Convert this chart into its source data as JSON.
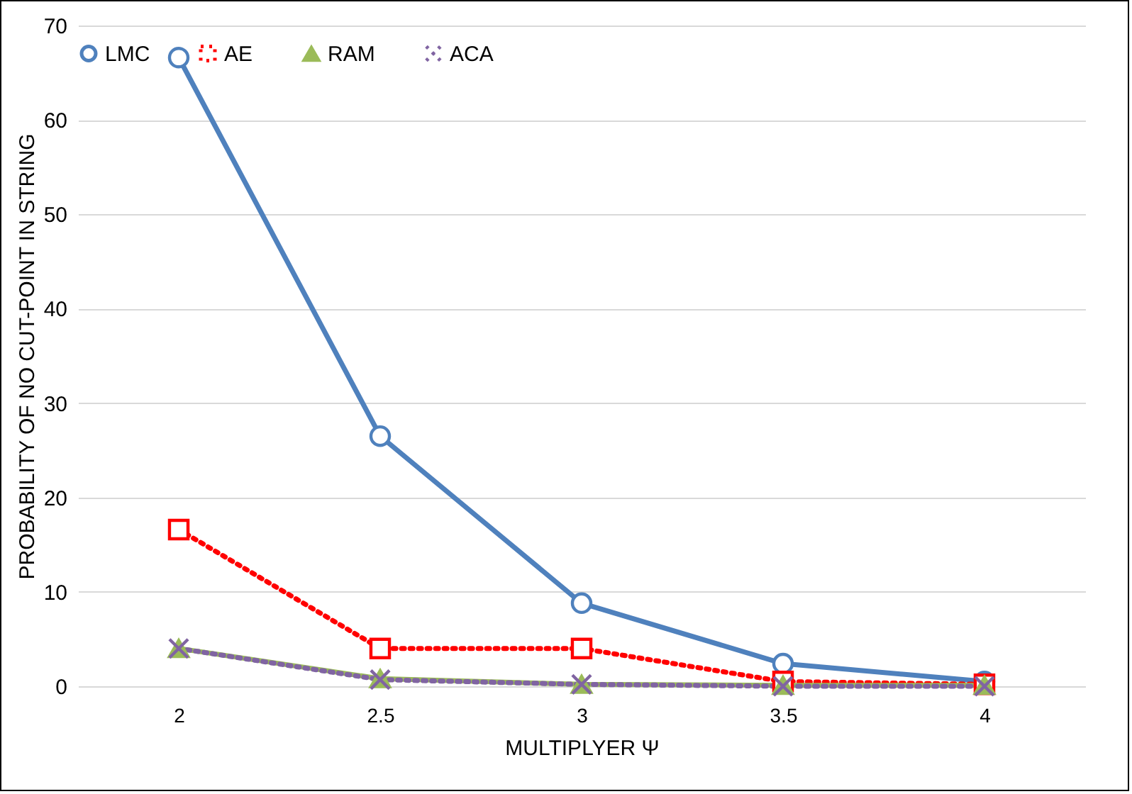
{
  "chart_data": {
    "type": "line",
    "xlabel": "MULTIPLYER Ψ",
    "ylabel": "PROBABILITY OF NO CUT-POINT IN STRING",
    "categories": [
      "2",
      "2.5",
      "3",
      "3.5",
      "4"
    ],
    "series": [
      {
        "name": "LMC",
        "color": "#4f81bd",
        "marker": "circle",
        "line_style": "solid",
        "values": [
          66.6,
          26.5,
          8.8,
          2.4,
          0.5
        ]
      },
      {
        "name": "AE",
        "color": "#ff0000",
        "marker": "square",
        "line_style": "dotted",
        "values": [
          16.6,
          4,
          4,
          0.5,
          0.2
        ]
      },
      {
        "name": "RAM",
        "color": "#9bbb59",
        "marker": "triangle",
        "line_style": "solid",
        "values": [
          4,
          0.8,
          0.2,
          0.1,
          0.1
        ]
      },
      {
        "name": "ACA",
        "color": "#8064a2",
        "marker": "cross",
        "line_style": "dotted",
        "values": [
          4,
          0.7,
          0.2,
          0,
          0
        ]
      }
    ],
    "ylim": [
      0,
      70
    ],
    "yticks": [
      0,
      10,
      20,
      30,
      40,
      50,
      60,
      70
    ],
    "grid": "y",
    "legend": "top"
  }
}
